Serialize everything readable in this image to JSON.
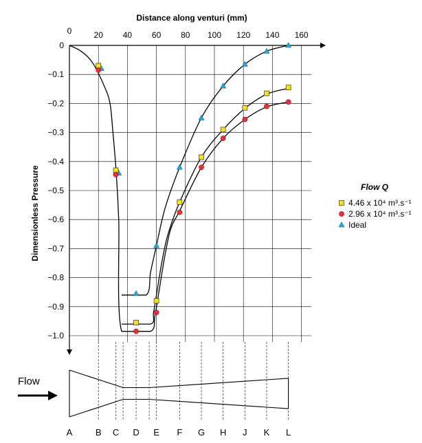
{
  "chart_data": {
    "type": "line",
    "title": "",
    "xlabel": "Distance along venturi  (mm)",
    "ylabel": "Dimensionless Pressure",
    "xlim": [
      0,
      160
    ],
    "ylim": [
      -1.0,
      0
    ],
    "x_ticks": [
      "0",
      "20",
      "40",
      "60",
      "80",
      "100",
      "120",
      "140",
      "160"
    ],
    "y_ticks": [
      "0",
      "-0.1",
      "-0.2",
      "-0.3",
      "-0.4",
      "-0.5",
      "-0.6",
      "-0.7",
      "-0.8",
      "-0.9",
      "-1.0"
    ],
    "grid": true,
    "legend_position": "right",
    "legend_title": "Flow Q",
    "series": [
      {
        "name": "4.46 x 10⁴ m³.s⁻¹",
        "marker": "square",
        "color": "#f5e11a",
        "x": [
          20,
          32,
          46,
          60,
          76,
          91,
          106,
          121,
          136,
          151
        ],
        "y": [
          -0.07,
          -0.43,
          -0.955,
          -0.88,
          -0.54,
          -0.385,
          -0.29,
          -0.215,
          -0.165,
          -0.145
        ]
      },
      {
        "name": "2.96 x 10⁴ m³.s⁻¹",
        "marker": "circle",
        "color": "#e8303a",
        "x": [
          20,
          32,
          46,
          60,
          76,
          91,
          106,
          121,
          136,
          151
        ],
        "y": [
          -0.085,
          -0.445,
          -0.985,
          -0.92,
          -0.575,
          -0.42,
          -0.32,
          -0.255,
          -0.21,
          -0.195
        ]
      },
      {
        "name": "Ideal",
        "marker": "triangle",
        "color": "#2aa7d6",
        "x": [
          22,
          34,
          46,
          60,
          76,
          91,
          106,
          121,
          136,
          151
        ],
        "y": [
          -0.08,
          -0.44,
          -0.855,
          -0.69,
          -0.42,
          -0.25,
          -0.14,
          -0.065,
          -0.02,
          0.0
        ]
      }
    ],
    "fit_curves": [
      [
        [
          0,
          0
        ],
        [
          8,
          -0.02
        ],
        [
          16,
          -0.06
        ],
        [
          24,
          -0.14
        ],
        [
          28,
          -0.2
        ],
        [
          30,
          -0.3
        ],
        [
          32,
          -0.42
        ],
        [
          34,
          -0.6
        ],
        [
          36,
          -0.985
        ],
        [
          56,
          -0.985
        ],
        [
          59,
          -0.93
        ],
        [
          62,
          -0.84
        ],
        [
          66,
          -0.72
        ],
        [
          70,
          -0.63
        ],
        [
          76,
          -0.57
        ],
        [
          91,
          -0.42
        ],
        [
          106,
          -0.32
        ],
        [
          121,
          -0.255
        ],
        [
          136,
          -0.212
        ],
        [
          151,
          -0.195
        ]
      ],
      [
        [
          36,
          -0.96
        ],
        [
          56,
          -0.96
        ],
        [
          58,
          -0.92
        ],
        [
          60,
          -0.86
        ],
        [
          64,
          -0.74
        ],
        [
          68,
          -0.65
        ],
        [
          76,
          -0.54
        ],
        [
          91,
          -0.385
        ],
        [
          106,
          -0.29
        ],
        [
          121,
          -0.217
        ],
        [
          136,
          -0.168
        ],
        [
          151,
          -0.148
        ]
      ],
      [
        [
          36,
          -0.86
        ],
        [
          53,
          -0.86
        ],
        [
          56,
          -0.78
        ],
        [
          60,
          -0.69
        ],
        [
          66,
          -0.56
        ],
        [
          76,
          -0.42
        ],
        [
          91,
          -0.25
        ],
        [
          106,
          -0.14
        ],
        [
          121,
          -0.065
        ],
        [
          136,
          -0.02
        ],
        [
          151,
          0.0
        ]
      ]
    ],
    "stations": [
      {
        "label": "A",
        "x": 0
      },
      {
        "label": "B",
        "x": 20
      },
      {
        "label": "C",
        "x": 32
      },
      {
        "label": "D",
        "x": 46
      },
      {
        "label": "E",
        "x": 60
      },
      {
        "label": "F",
        "x": 76
      },
      {
        "label": "G",
        "x": 91
      },
      {
        "label": "H",
        "x": 106
      },
      {
        "label": "J",
        "x": 121
      },
      {
        "label": "K",
        "x": 136
      },
      {
        "label": "L",
        "x": 151
      }
    ],
    "venturi_profile": [
      [
        0,
        1.0
      ],
      [
        37,
        0.25
      ],
      [
        55,
        0.25
      ],
      [
        151,
        0.65
      ]
    ]
  },
  "flow_label": "Flow"
}
